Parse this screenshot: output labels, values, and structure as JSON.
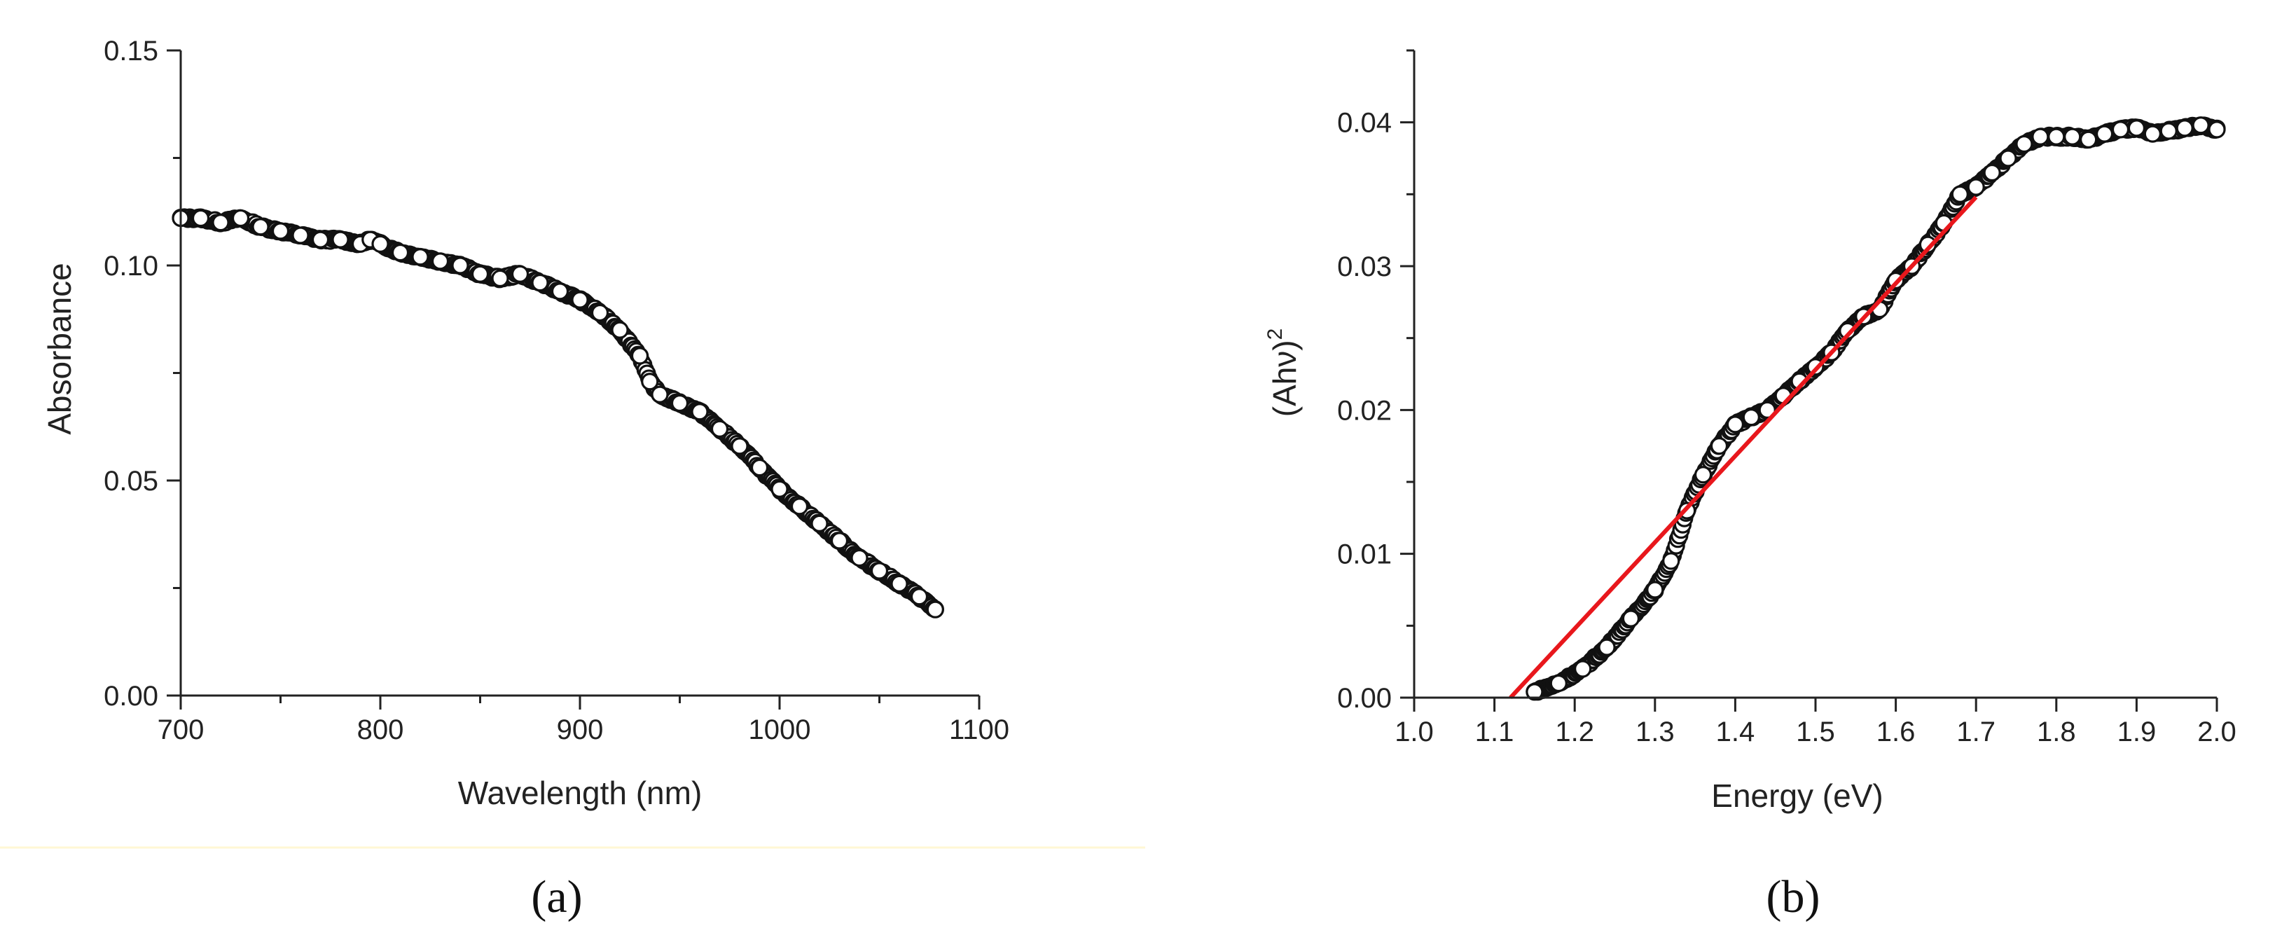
{
  "chart_data": [
    {
      "type": "scatter",
      "panel_label": "(a)",
      "xlabel": "Wavelength (nm)",
      "ylabel": "Absorbance",
      "xlim": [
        700,
        1100
      ],
      "ylim": [
        0,
        0.15
      ],
      "x_ticks": [
        "700",
        "800",
        "900",
        "1000",
        "1100"
      ],
      "y_ticks": [
        "0.00",
        "0.05",
        "0.10",
        "0.15"
      ],
      "grid": false,
      "legend": "none",
      "marker": "open-circle",
      "colors": {
        "marker_edge": "#111111",
        "marker_face": "#ffffff"
      },
      "series": [
        {
          "x": [
            700,
            710,
            720,
            730,
            740,
            750,
            760,
            770,
            780,
            790,
            795,
            800,
            810,
            820,
            830,
            840,
            850,
            860,
            870,
            880,
            890,
            900,
            910,
            920,
            930,
            935,
            940,
            950,
            960,
            970,
            980,
            990,
            1000,
            1010,
            1020,
            1030,
            1040,
            1050,
            1060,
            1070,
            1078
          ],
          "y": [
            0.111,
            0.111,
            0.11,
            0.111,
            0.109,
            0.108,
            0.107,
            0.106,
            0.106,
            0.105,
            0.106,
            0.105,
            0.103,
            0.102,
            0.101,
            0.1,
            0.098,
            0.097,
            0.098,
            0.096,
            0.094,
            0.092,
            0.089,
            0.085,
            0.079,
            0.073,
            0.07,
            0.068,
            0.066,
            0.062,
            0.058,
            0.053,
            0.048,
            0.044,
            0.04,
            0.036,
            0.032,
            0.029,
            0.026,
            0.023,
            0.02
          ]
        }
      ]
    },
    {
      "type": "scatter",
      "panel_label": "(b)",
      "xlabel": "Energy (eV)",
      "ylabel": "(Ahν)",
      "ylabel_superscript": "2",
      "xlim": [
        1.0,
        2.0
      ],
      "ylim": [
        0,
        0.045
      ],
      "x_ticks": [
        "1.0",
        "1.1",
        "1.2",
        "1.3",
        "1.4",
        "1.5",
        "1.6",
        "1.7",
        "1.8",
        "1.9",
        "2.0"
      ],
      "y_ticks": [
        "0.00",
        "0.01",
        "0.02",
        "0.03",
        "0.04"
      ],
      "grid": false,
      "legend": "none",
      "marker": "open-circle",
      "colors": {
        "marker_edge": "#111111",
        "marker_face": "#ffffff",
        "fit_line": "#e8171c"
      },
      "series": [
        {
          "x": [
            1.15,
            1.18,
            1.21,
            1.24,
            1.27,
            1.3,
            1.32,
            1.34,
            1.36,
            1.38,
            1.4,
            1.42,
            1.44,
            1.46,
            1.48,
            1.5,
            1.52,
            1.54,
            1.56,
            1.58,
            1.6,
            1.62,
            1.64,
            1.66,
            1.68,
            1.7,
            1.72,
            1.74,
            1.76,
            1.78,
            1.8,
            1.82,
            1.84,
            1.86,
            1.88,
            1.9,
            1.92,
            1.94,
            1.96,
            1.98,
            2.0
          ],
          "y": [
            0.0004,
            0.001,
            0.002,
            0.0035,
            0.0055,
            0.0075,
            0.0095,
            0.013,
            0.0155,
            0.0175,
            0.019,
            0.0195,
            0.02,
            0.021,
            0.022,
            0.023,
            0.024,
            0.0255,
            0.0265,
            0.027,
            0.029,
            0.03,
            0.0315,
            0.033,
            0.035,
            0.0355,
            0.0365,
            0.0375,
            0.0385,
            0.039,
            0.039,
            0.039,
            0.0388,
            0.0392,
            0.0395,
            0.0396,
            0.0392,
            0.0394,
            0.0396,
            0.0398,
            0.0395
          ]
        },
        {
          "type": "line",
          "role": "linear-fit",
          "x": [
            1.12,
            1.7
          ],
          "y": [
            0.0,
            0.0348
          ]
        }
      ]
    }
  ]
}
